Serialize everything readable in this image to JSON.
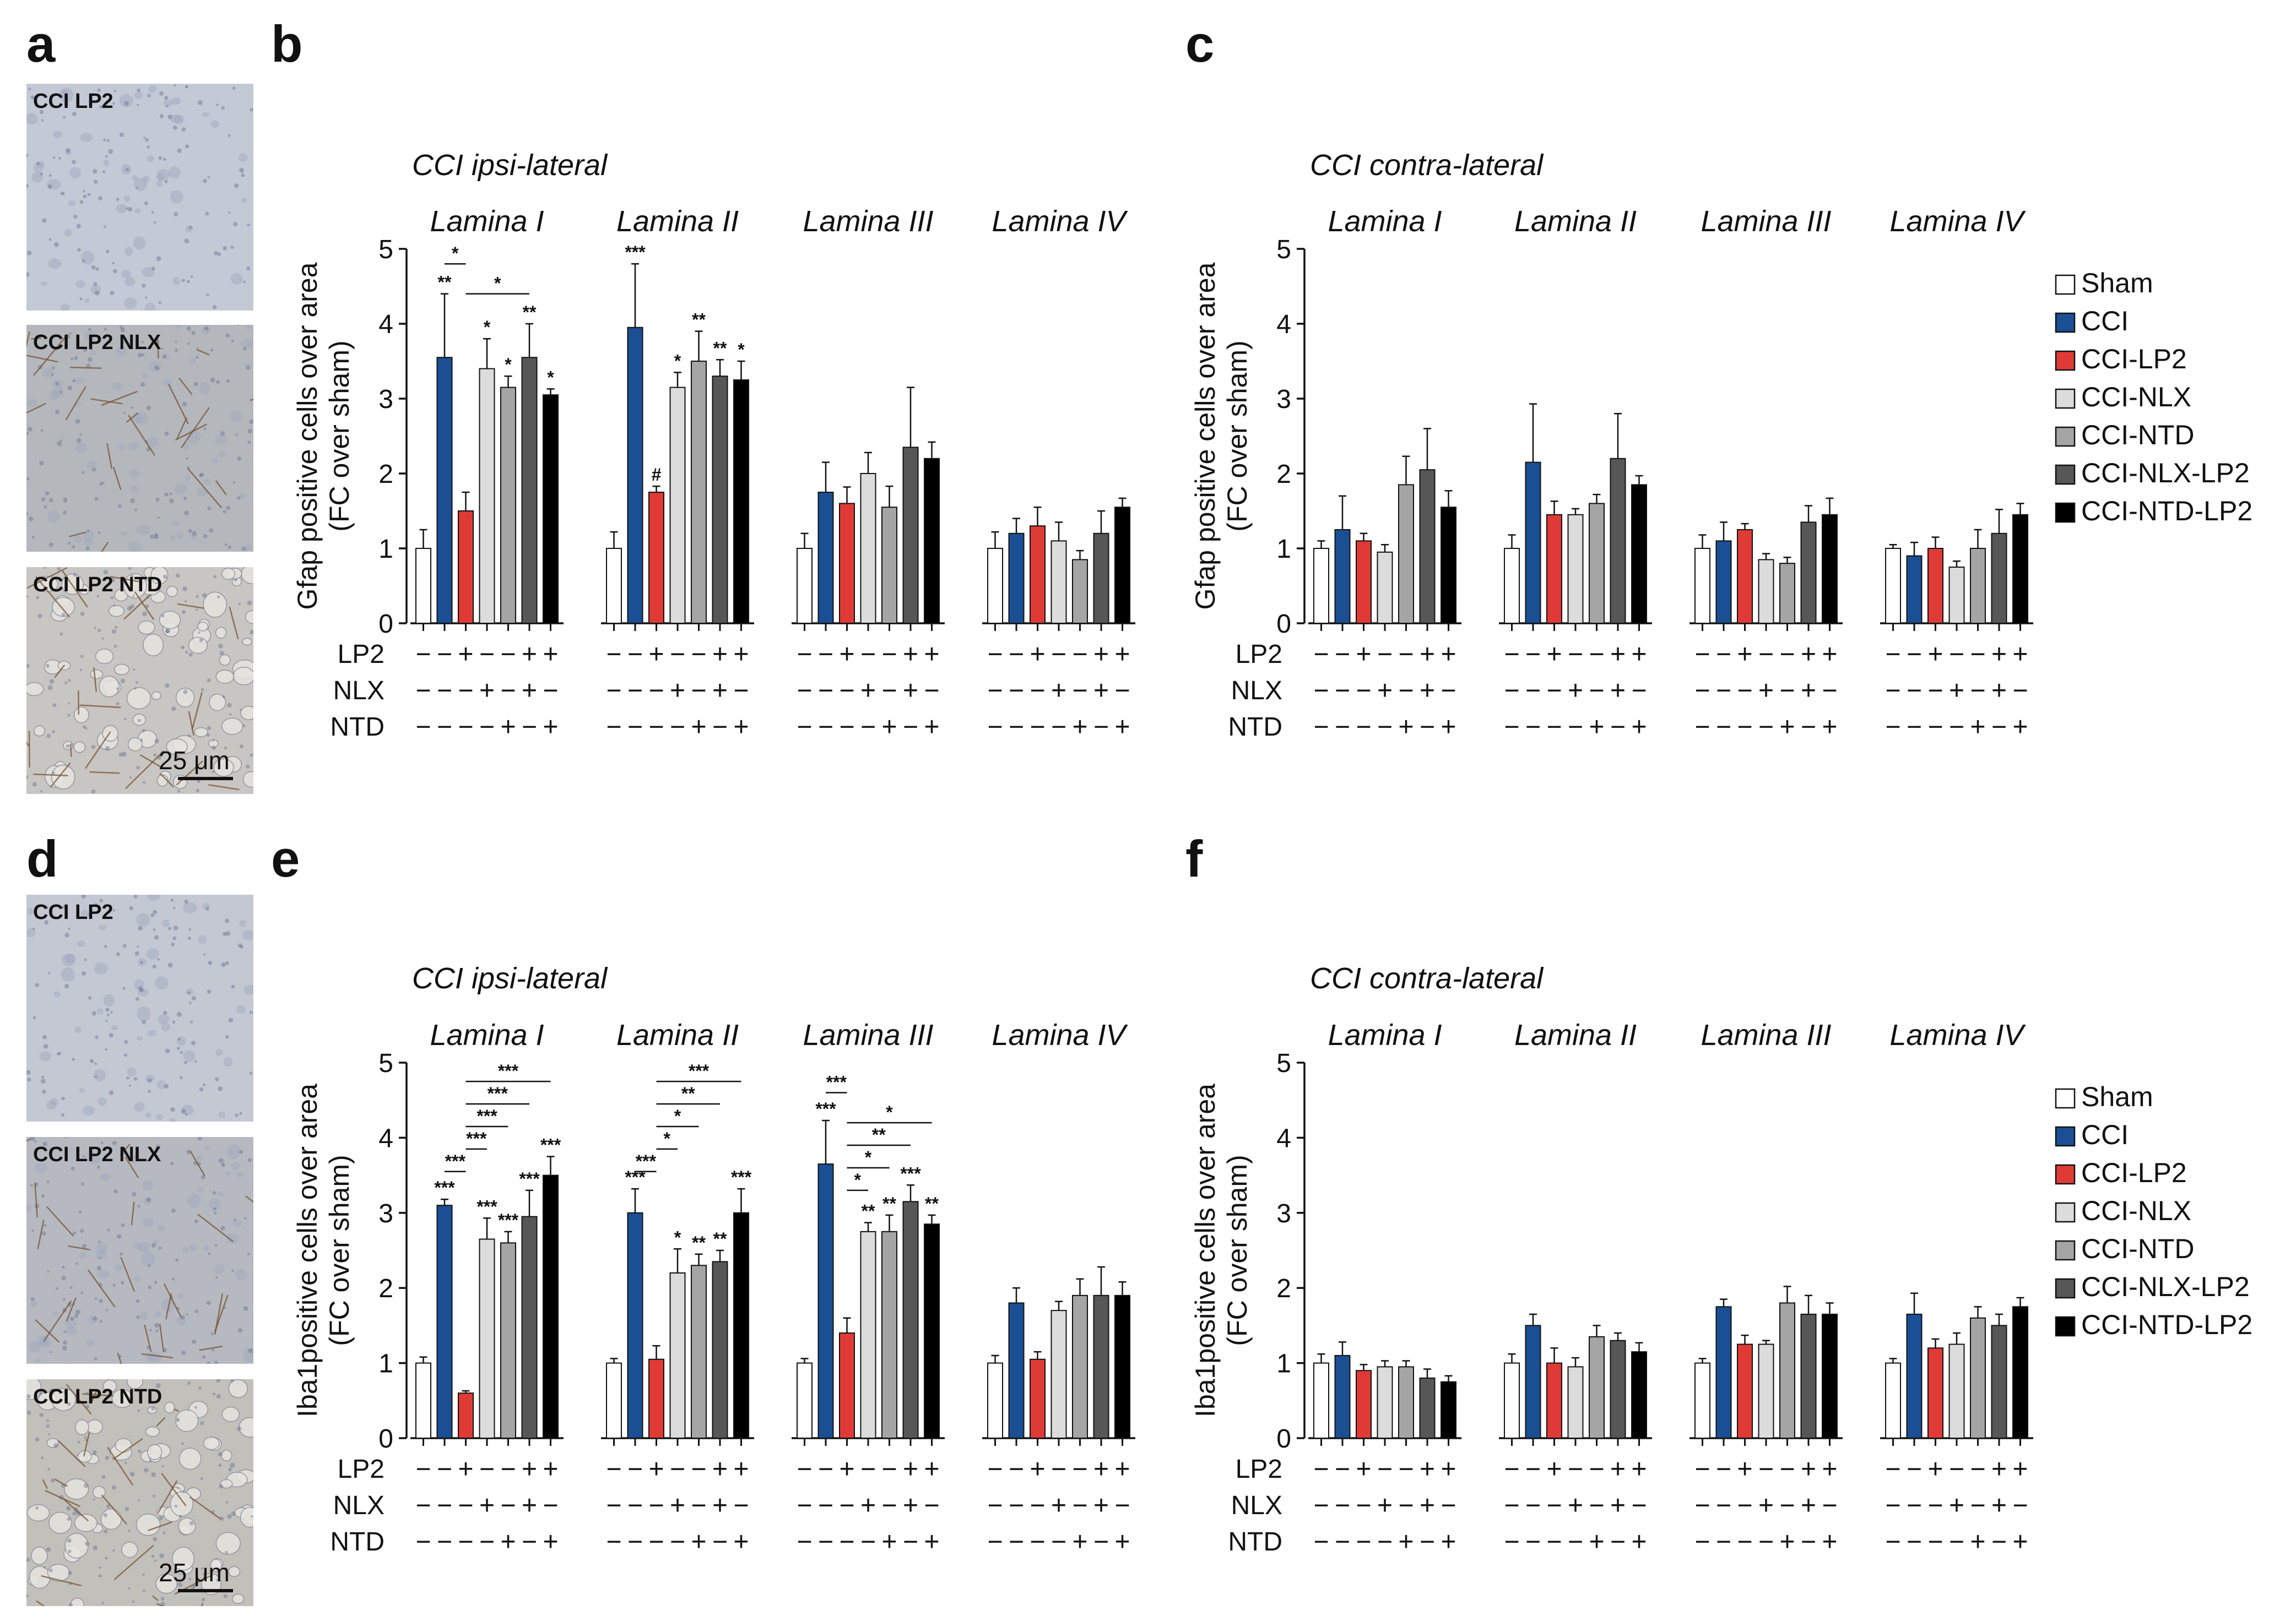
{
  "panel_letters": [
    "a",
    "b",
    "c",
    "d",
    "e",
    "f"
  ],
  "micrograph_panels": [
    {
      "letter": "a",
      "images": [
        {
          "label": "CCI LP2",
          "tone": "#c4c9d6",
          "fiber": false,
          "dense": false
        },
        {
          "label": "CCI LP2 NLX",
          "tone": "#b4b8bc",
          "fiber": true,
          "dense": false
        },
        {
          "label": "CCI LP2 NTD",
          "tone": "#c8c6c2",
          "fiber": true,
          "dense": true
        }
      ],
      "scale_label": "25 μm"
    },
    {
      "letter": "d",
      "images": [
        {
          "label": "CCI LP2",
          "tone": "#c3c8d3",
          "fiber": false,
          "dense": false
        },
        {
          "label": "CCI LP2 NLX",
          "tone": "#b6bac0",
          "fiber": true,
          "dense": false
        },
        {
          "label": "CCI LP2 NTD",
          "tone": "#c2c0bb",
          "fiber": true,
          "dense": true
        }
      ],
      "scale_label": "25 μm"
    }
  ],
  "colors": {
    "Sham": "#ffffff",
    "CCI": "#1a4f94",
    "CCI-LP2": "#e03a36",
    "CCI-NLX": "#dcdcdc",
    "CCI-NTD": "#a5a5a5",
    "CCI-NLX-LP2": "#575757",
    "CCI-NTD-LP2": "#000000"
  },
  "treatment_rows": [
    {
      "label": "LP2",
      "signs": [
        "−",
        "−",
        "+",
        "−",
        "−",
        "+",
        "+"
      ]
    },
    {
      "label": "NLX",
      "signs": [
        "−",
        "−",
        "−",
        "+",
        "−",
        "+",
        "−"
      ]
    },
    {
      "label": "NTD",
      "signs": [
        "−",
        "−",
        "−",
        "−",
        "+",
        "−",
        "+"
      ]
    }
  ],
  "chart_data": [
    {
      "panel": "b",
      "type": "bar",
      "title": "CCI ipsi-lateral",
      "ylabel_line1": "Gfap positive cells over area",
      "ylabel_line2": "(FC over sham)",
      "ylim": [
        0,
        5
      ],
      "yticks": [
        "0",
        "1",
        "2",
        "3",
        "4",
        "5"
      ],
      "groups": [
        "Lamina I",
        "Lamina II",
        "Lamina III",
        "Lamina IV"
      ],
      "series": [
        "Sham",
        "CCI",
        "CCI-LP2",
        "CCI-NLX",
        "CCI-NTD",
        "CCI-NLX-LP2",
        "CCI-NTD-LP2"
      ],
      "values": [
        [
          1.0,
          3.55,
          1.5,
          3.4,
          3.15,
          3.55,
          3.05
        ],
        [
          1.0,
          3.95,
          1.75,
          3.15,
          3.5,
          3.3,
          3.25
        ],
        [
          1.0,
          1.75,
          1.6,
          2.0,
          1.55,
          2.35,
          2.2
        ],
        [
          1.0,
          1.2,
          1.3,
          1.1,
          0.85,
          1.2,
          1.55
        ]
      ],
      "errors": [
        [
          0.25,
          0.85,
          0.25,
          0.4,
          0.15,
          0.45,
          0.08
        ],
        [
          0.22,
          0.85,
          0.08,
          0.2,
          0.4,
          0.22,
          0.25
        ],
        [
          0.2,
          0.4,
          0.22,
          0.28,
          0.28,
          0.8,
          0.22
        ],
        [
          0.22,
          0.2,
          0.25,
          0.25,
          0.12,
          0.3,
          0.12
        ]
      ],
      "annotations": [
        {
          "group": 0,
          "bar": 1,
          "text": "**"
        },
        {
          "group": 0,
          "bar": 3,
          "text": "*"
        },
        {
          "group": 0,
          "bar": 4,
          "text": "*"
        },
        {
          "group": 0,
          "bar": 5,
          "text": "**"
        },
        {
          "group": 0,
          "bar": 6,
          "text": "*"
        },
        {
          "group": 1,
          "bar": 1,
          "text": "***"
        },
        {
          "group": 1,
          "bar": 2,
          "text": "#"
        },
        {
          "group": 1,
          "bar": 3,
          "text": "*"
        },
        {
          "group": 1,
          "bar": 4,
          "text": "**"
        },
        {
          "group": 1,
          "bar": 5,
          "text": "**"
        },
        {
          "group": 1,
          "bar": 6,
          "text": "*"
        }
      ],
      "brackets": [
        {
          "group": 0,
          "from": 1,
          "to": 2,
          "level": 4.8,
          "text": "*"
        },
        {
          "group": 0,
          "from": 2,
          "to": 5,
          "level": 4.4,
          "text": "*"
        }
      ],
      "legend": false
    },
    {
      "panel": "c",
      "type": "bar",
      "title": "CCI contra-lateral",
      "ylabel_line1": "Gfap positive cells over area",
      "ylabel_line2": "(FC over sham)",
      "ylim": [
        0,
        5
      ],
      "yticks": [
        "0",
        "1",
        "2",
        "3",
        "4",
        "5"
      ],
      "groups": [
        "Lamina I",
        "Lamina II",
        "Lamina III",
        "Lamina IV"
      ],
      "series": [
        "Sham",
        "CCI",
        "CCI-LP2",
        "CCI-NLX",
        "CCI-NTD",
        "CCI-NLX-LP2",
        "CCI-NTD-LP2"
      ],
      "values": [
        [
          1.0,
          1.25,
          1.1,
          0.95,
          1.85,
          2.05,
          1.55
        ],
        [
          1.0,
          2.15,
          1.45,
          1.45,
          1.6,
          2.2,
          1.85
        ],
        [
          1.0,
          1.1,
          1.25,
          0.85,
          0.8,
          1.35,
          1.45
        ],
        [
          1.0,
          0.9,
          1.0,
          0.75,
          1.0,
          1.2,
          1.45
        ]
      ],
      "errors": [
        [
          0.1,
          0.45,
          0.1,
          0.1,
          0.38,
          0.55,
          0.22
        ],
        [
          0.18,
          0.78,
          0.18,
          0.08,
          0.12,
          0.6,
          0.12
        ],
        [
          0.18,
          0.25,
          0.08,
          0.08,
          0.08,
          0.22,
          0.22
        ],
        [
          0.05,
          0.18,
          0.15,
          0.08,
          0.25,
          0.32,
          0.15
        ]
      ],
      "annotations": [],
      "brackets": [],
      "legend": true
    },
    {
      "panel": "e",
      "type": "bar",
      "title": "CCI ipsi-lateral",
      "ylabel_line1": "Iba1positive cells over area",
      "ylabel_line2": "(FC over sham)",
      "ylim": [
        0,
        5
      ],
      "yticks": [
        "0",
        "1",
        "2",
        "3",
        "4",
        "5"
      ],
      "groups": [
        "Lamina I",
        "Lamina II",
        "Lamina III",
        "Lamina IV"
      ],
      "series": [
        "Sham",
        "CCI",
        "CCI-LP2",
        "CCI-NLX",
        "CCI-NTD",
        "CCI-NLX-LP2",
        "CCI-NTD-LP2"
      ],
      "values": [
        [
          1.0,
          3.1,
          0.6,
          2.65,
          2.6,
          2.95,
          3.5
        ],
        [
          1.0,
          3.0,
          1.05,
          2.2,
          2.3,
          2.35,
          3.0
        ],
        [
          1.0,
          3.65,
          1.4,
          2.75,
          2.75,
          3.15,
          2.85
        ],
        [
          1.0,
          1.8,
          1.05,
          1.7,
          1.9,
          1.9,
          1.9
        ]
      ],
      "errors": [
        [
          0.08,
          0.08,
          0.03,
          0.28,
          0.15,
          0.35,
          0.25
        ],
        [
          0.06,
          0.32,
          0.18,
          0.32,
          0.15,
          0.15,
          0.32
        ],
        [
          0.06,
          0.58,
          0.2,
          0.12,
          0.22,
          0.22,
          0.12
        ],
        [
          0.1,
          0.2,
          0.1,
          0.12,
          0.22,
          0.38,
          0.18
        ]
      ],
      "annotations": [
        {
          "group": 0,
          "bar": 1,
          "text": "***"
        },
        {
          "group": 0,
          "bar": 3,
          "text": "***"
        },
        {
          "group": 0,
          "bar": 4,
          "text": "***"
        },
        {
          "group": 0,
          "bar": 5,
          "text": "***"
        },
        {
          "group": 0,
          "bar": 6,
          "text": "***"
        },
        {
          "group": 1,
          "bar": 1,
          "text": "***"
        },
        {
          "group": 1,
          "bar": 3,
          "text": "*"
        },
        {
          "group": 1,
          "bar": 4,
          "text": "**"
        },
        {
          "group": 1,
          "bar": 5,
          "text": "**"
        },
        {
          "group": 1,
          "bar": 6,
          "text": "***"
        },
        {
          "group": 2,
          "bar": 1,
          "text": "***"
        },
        {
          "group": 2,
          "bar": 3,
          "text": "**"
        },
        {
          "group": 2,
          "bar": 4,
          "text": "**"
        },
        {
          "group": 2,
          "bar": 5,
          "text": "***"
        },
        {
          "group": 2,
          "bar": 6,
          "text": "**"
        }
      ],
      "brackets": [
        {
          "group": 0,
          "from": 1,
          "to": 2,
          "level": 3.55,
          "text": "***"
        },
        {
          "group": 0,
          "from": 2,
          "to": 3,
          "level": 3.85,
          "text": "***"
        },
        {
          "group": 0,
          "from": 2,
          "to": 4,
          "level": 4.15,
          "text": "***"
        },
        {
          "group": 0,
          "from": 2,
          "to": 5,
          "level": 4.45,
          "text": "***"
        },
        {
          "group": 0,
          "from": 2,
          "to": 6,
          "level": 4.75,
          "text": "***"
        },
        {
          "group": 1,
          "from": 1,
          "to": 2,
          "level": 3.55,
          "text": "***"
        },
        {
          "group": 1,
          "from": 2,
          "to": 3,
          "level": 3.85,
          "text": "*"
        },
        {
          "group": 1,
          "from": 2,
          "to": 4,
          "level": 4.15,
          "text": "*"
        },
        {
          "group": 1,
          "from": 2,
          "to": 5,
          "level": 4.45,
          "text": "**"
        },
        {
          "group": 1,
          "from": 2,
          "to": 6,
          "level": 4.75,
          "text": "***"
        },
        {
          "group": 2,
          "from": 1,
          "to": 2,
          "level": 4.6,
          "text": "***"
        },
        {
          "group": 2,
          "from": 2,
          "to": 3,
          "level": 3.3,
          "text": "*"
        },
        {
          "group": 2,
          "from": 2,
          "to": 4,
          "level": 3.6,
          "text": "*"
        },
        {
          "group": 2,
          "from": 2,
          "to": 5,
          "level": 3.9,
          "text": "**"
        },
        {
          "group": 2,
          "from": 2,
          "to": 6,
          "level": 4.2,
          "text": "*"
        }
      ],
      "legend": false
    },
    {
      "panel": "f",
      "type": "bar",
      "title": "CCI contra-lateral",
      "ylabel_line1": "Iba1positive cells over area",
      "ylabel_line2": "(FC over sham)",
      "ylim": [
        0,
        5
      ],
      "yticks": [
        "0",
        "1",
        "2",
        "3",
        "4",
        "5"
      ],
      "groups": [
        "Lamina I",
        "Lamina II",
        "Lamina III",
        "Lamina IV"
      ],
      "series": [
        "Sham",
        "CCI",
        "CCI-LP2",
        "CCI-NLX",
        "CCI-NTD",
        "CCI-NLX-LP2",
        "CCI-NTD-LP2"
      ],
      "values": [
        [
          1.0,
          1.1,
          0.9,
          0.95,
          0.95,
          0.8,
          0.75
        ],
        [
          1.0,
          1.5,
          1.0,
          0.95,
          1.35,
          1.3,
          1.15
        ],
        [
          1.0,
          1.75,
          1.25,
          1.25,
          1.8,
          1.65,
          1.65
        ],
        [
          1.0,
          1.65,
          1.2,
          1.25,
          1.6,
          1.5,
          1.75
        ]
      ],
      "errors": [
        [
          0.12,
          0.18,
          0.08,
          0.08,
          0.08,
          0.12,
          0.08
        ],
        [
          0.12,
          0.15,
          0.2,
          0.12,
          0.15,
          0.1,
          0.12
        ],
        [
          0.06,
          0.1,
          0.12,
          0.05,
          0.22,
          0.25,
          0.15
        ],
        [
          0.06,
          0.28,
          0.12,
          0.15,
          0.15,
          0.15,
          0.12
        ]
      ],
      "annotations": [],
      "brackets": [],
      "legend": true
    }
  ]
}
